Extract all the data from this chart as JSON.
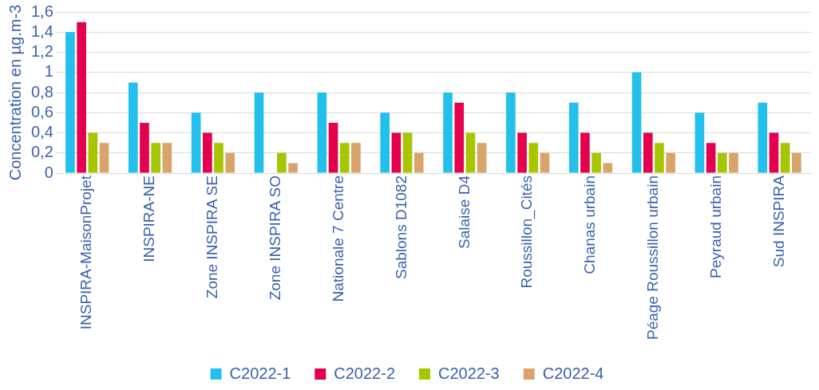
{
  "chart_data": {
    "type": "bar",
    "ylabel": "Concentration en µg.m-3",
    "categories": [
      "INSPIRA-MaisonProjet",
      "INSPIRA-NE",
      "Zone INSPIRA SE",
      "Zone INSPIRA SO",
      "Nationale 7 Centre",
      "Sablons D1082",
      "Salaise D4",
      "Roussillon_Cités",
      "Chanas urbain",
      "Péage Roussillon urbain",
      "Peyraud urbain",
      "Sud INSPIRA"
    ],
    "series": [
      {
        "name": "C2022-1",
        "color": "#22c0ea",
        "values": [
          1.4,
          0.9,
          0.6,
          0.8,
          0.8,
          0.6,
          0.8,
          0.8,
          0.7,
          1.0,
          0.6,
          0.7
        ]
      },
      {
        "name": "C2022-2",
        "color": "#e3004f",
        "values": [
          1.5,
          0.5,
          0.4,
          null,
          0.5,
          0.4,
          0.7,
          0.4,
          0.4,
          0.4,
          0.3,
          0.4
        ]
      },
      {
        "name": "C2022-3",
        "color": "#a5c600",
        "values": [
          0.4,
          0.3,
          0.3,
          0.2,
          0.3,
          0.4,
          0.4,
          0.3,
          0.2,
          0.3,
          0.2,
          0.3
        ]
      },
      {
        "name": "C2022-4",
        "color": "#d9a46c",
        "values": [
          0.3,
          0.3,
          0.2,
          0.1,
          0.3,
          0.2,
          0.3,
          0.2,
          0.1,
          0.2,
          0.2,
          0.2
        ]
      }
    ],
    "ylim": [
      0,
      1.6
    ],
    "yticks": [
      0,
      {
        "value": 0.2,
        "label": "0,2"
      },
      {
        "value": 0.4,
        "label": "0,4"
      },
      {
        "value": 0.6,
        "label": "0,6"
      },
      {
        "value": 0.8,
        "label": "0,8"
      },
      1,
      {
        "value": 1.2,
        "label": "1,2"
      },
      {
        "value": 1.4,
        "label": "1,4"
      },
      {
        "value": 1.6,
        "label": "1,6"
      }
    ],
    "grid": "y",
    "legend": "bottom"
  }
}
